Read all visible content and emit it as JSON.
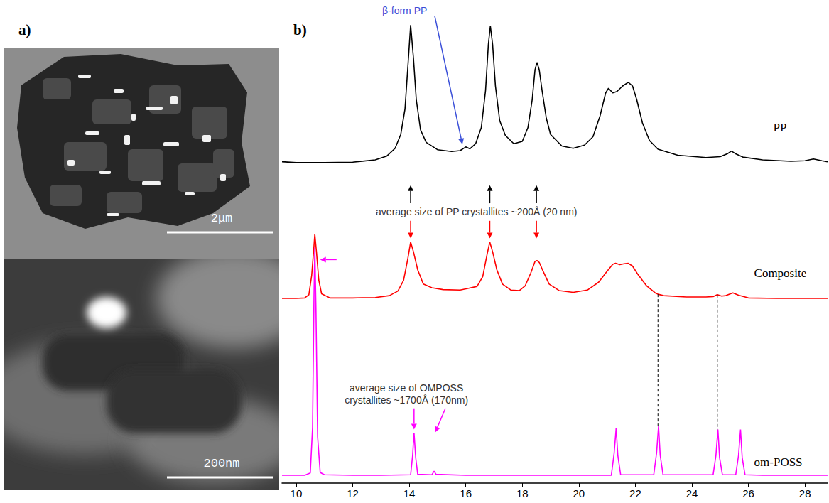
{
  "panels": {
    "a": {
      "label": "a)",
      "images": [
        {
          "scale_bar": "2μm"
        },
        {
          "scale_bar": "200nm"
        }
      ]
    },
    "b": {
      "label": "b)"
    }
  },
  "chart_data": {
    "type": "line",
    "xlim": [
      9.5,
      28.8
    ],
    "xticks": [
      10,
      12,
      14,
      16,
      18,
      20,
      22,
      24,
      26,
      28
    ],
    "ylim": [
      0,
      100
    ],
    "grid": false,
    "tick_labels": "x",
    "series": [
      {
        "name": "PP",
        "color": "#000000",
        "line_style": "solid",
        "label_x": 26.88,
        "label_y": 77,
        "x": [
          9.5,
          10,
          11,
          12,
          12.8,
          13.2,
          13.5,
          13.7,
          13.85,
          13.95,
          14.05,
          14.15,
          14.25,
          14.4,
          14.6,
          15.0,
          15.5,
          15.8,
          16.0,
          16.15,
          16.35,
          16.55,
          16.7,
          16.8,
          16.87,
          16.95,
          17.05,
          17.2,
          17.4,
          17.7,
          18.0,
          18.2,
          18.35,
          18.45,
          18.52,
          18.6,
          18.7,
          18.85,
          19.0,
          19.4,
          19.8,
          20.2,
          20.5,
          20.75,
          20.95,
          21.05,
          21.2,
          21.35,
          21.55,
          21.75,
          21.9,
          22.05,
          22.25,
          22.5,
          22.8,
          23.5,
          24.5,
          25.0,
          25.25,
          25.4,
          25.55,
          25.8,
          26.5,
          27.5,
          28.0,
          28.3,
          28.6,
          28.8
        ],
        "values": [
          69.6,
          69.4,
          69.4,
          69.5,
          70.0,
          70.8,
          72.5,
          75.5,
          81,
          90,
          99.2,
          92,
          83,
          76.5,
          73.8,
          72.2,
          71.8,
          72.0,
          72.8,
          72.4,
          73.5,
          77,
          85,
          95,
          99,
          95,
          86,
          78.5,
          75.3,
          73.5,
          74.0,
          77,
          83,
          89.5,
          91.1,
          89.5,
          85,
          79,
          75.5,
          73,
          72.5,
          73.2,
          75,
          79.5,
          84.5,
          85.5,
          84.5,
          84.8,
          86,
          86.8,
          86,
          83,
          78,
          74.2,
          72.3,
          71.0,
          70.5,
          70.7,
          71.3,
          71.9,
          71.3,
          70.6,
          70.0,
          69.7,
          69.8,
          70.2,
          69.8,
          69.6
        ]
      },
      {
        "name": "Composite",
        "color": "#ff0000",
        "line_style": "solid",
        "label_x": 26.2,
        "label_y": 45.5,
        "x": [
          9.5,
          10.0,
          10.3,
          10.45,
          10.55,
          10.62,
          10.66,
          10.72,
          10.8,
          10.9,
          11.2,
          12,
          12.8,
          13.3,
          13.6,
          13.8,
          13.95,
          14.05,
          14.15,
          14.3,
          14.5,
          14.8,
          15.2,
          15.8,
          16.1,
          16.4,
          16.6,
          16.75,
          16.85,
          16.95,
          17.1,
          17.3,
          17.6,
          17.9,
          18.1,
          18.3,
          18.45,
          18.52,
          18.6,
          18.75,
          18.95,
          19.3,
          19.8,
          20.3,
          20.7,
          21.0,
          21.2,
          21.3,
          21.45,
          21.6,
          21.75,
          21.9,
          22.1,
          22.4,
          22.7,
          22.8,
          23.0,
          23.8,
          24.5,
          24.75,
          24.9,
          25.05,
          25.2,
          25.45,
          25.65,
          26.0,
          27,
          28,
          28.8
        ],
        "values": [
          40.0,
          40.0,
          40.1,
          40.8,
          45,
          50.5,
          53.9,
          50,
          44,
          41.0,
          40.1,
          40.1,
          40.2,
          40.6,
          41.6,
          43.9,
          48.6,
          52.2,
          50.1,
          46.2,
          43.1,
          42.3,
          41.9,
          41.8,
          42.2,
          42.6,
          44.7,
          49.4,
          52.2,
          50.1,
          46.2,
          43.1,
          41.8,
          41.7,
          42.7,
          45.5,
          48.0,
          48.2,
          47.8,
          45.7,
          43.1,
          41.7,
          41.3,
          41.8,
          43.5,
          45.9,
          47.4,
          47.6,
          47.3,
          47.5,
          47.6,
          47.0,
          45.1,
          42.7,
          41.2,
          40.9,
          40.6,
          40.3,
          40.3,
          40.4,
          40.8,
          40.5,
          40.6,
          41.2,
          40.7,
          40.1,
          40.0,
          40.0,
          40.0
        ]
      },
      {
        "name": "om-POSS",
        "color": "#ff00ff",
        "line_style": "solid",
        "label_x": 26.2,
        "label_y": 4.6,
        "x": [
          9.5,
          10.3,
          10.5,
          10.58,
          10.63,
          10.66,
          10.7,
          10.76,
          10.85,
          11,
          12,
          13,
          14.05,
          14.12,
          14.17,
          14.23,
          14.3,
          14.8,
          14.88,
          14.95,
          16,
          17,
          18,
          21.15,
          21.25,
          21.32,
          21.38,
          21.48,
          22.65,
          22.75,
          22.82,
          22.88,
          22.98,
          24.75,
          24.85,
          24.92,
          24.98,
          25.08,
          25.55,
          25.65,
          25.72,
          25.78,
          25.88,
          26.5,
          28.8
        ],
        "values": [
          1.7,
          1.7,
          2.2,
          12,
          40,
          51.0,
          38,
          10,
          2.3,
          1.8,
          1.7,
          1.7,
          1.8,
          6,
          10.9,
          5.5,
          1.9,
          1.8,
          2.6,
          1.9,
          1.7,
          1.7,
          1.7,
          1.7,
          6.5,
          11.9,
          6,
          1.8,
          1.8,
          6.5,
          12.3,
          6,
          1.8,
          1.8,
          6,
          11.6,
          5.5,
          1.8,
          1.8,
          6,
          11.6,
          5.5,
          1.8,
          1.7,
          1.7
        ]
      }
    ],
    "annotations": [
      {
        "text": "β-form PP",
        "x": 13.84,
        "y": 102.3,
        "color": "#3a4fd8"
      },
      {
        "text": "average size of PP crystallites ~200Å (20 nm)",
        "x": 16.38,
        "y": 58.7,
        "color": "#333333"
      },
      {
        "text": "average size of OMPOSS\ncrystallites ~1700Å (170nm)",
        "x": 13.9,
        "y": 19.3,
        "color": "#333333"
      }
    ],
    "arrows": [
      {
        "x1": 14.05,
        "y1": 60.6,
        "x2": 14.05,
        "y2": 64.5,
        "color": "#000000"
      },
      {
        "x1": 16.85,
        "y1": 60.6,
        "x2": 16.85,
        "y2": 64.5,
        "color": "#000000"
      },
      {
        "x1": 18.5,
        "y1": 60.6,
        "x2": 18.5,
        "y2": 64.5,
        "color": "#000000"
      },
      {
        "x1": 14.05,
        "y1": 56.8,
        "x2": 14.05,
        "y2": 53.0,
        "color": "#ff0000"
      },
      {
        "x1": 16.85,
        "y1": 56.8,
        "x2": 16.85,
        "y2": 53.0,
        "color": "#ff0000"
      },
      {
        "x1": 18.5,
        "y1": 56.8,
        "x2": 18.5,
        "y2": 53.0,
        "color": "#ff0000"
      },
      {
        "x1": 14.9,
        "y1": 101.2,
        "x2": 15.88,
        "y2": 73.4,
        "color": "#3a4fd8"
      },
      {
        "x1": 11.43,
        "y1": 48.4,
        "x2": 10.85,
        "y2": 48.4,
        "color": "#ff00ff"
      },
      {
        "x1": 14.17,
        "y1": 16.2,
        "x2": 14.17,
        "y2": 11.6,
        "color": "#ff00ff"
      },
      {
        "x1": 15.28,
        "y1": 16.2,
        "x2": 14.92,
        "y2": 11.0,
        "color": "#ff00ff"
      }
    ],
    "guides": [
      {
        "x": 22.8,
        "y1": 40.9,
        "y2": 12.3,
        "line_style": "dashed"
      },
      {
        "x": 24.9,
        "y1": 40.8,
        "y2": 11.6,
        "line_style": "dashed"
      }
    ]
  }
}
